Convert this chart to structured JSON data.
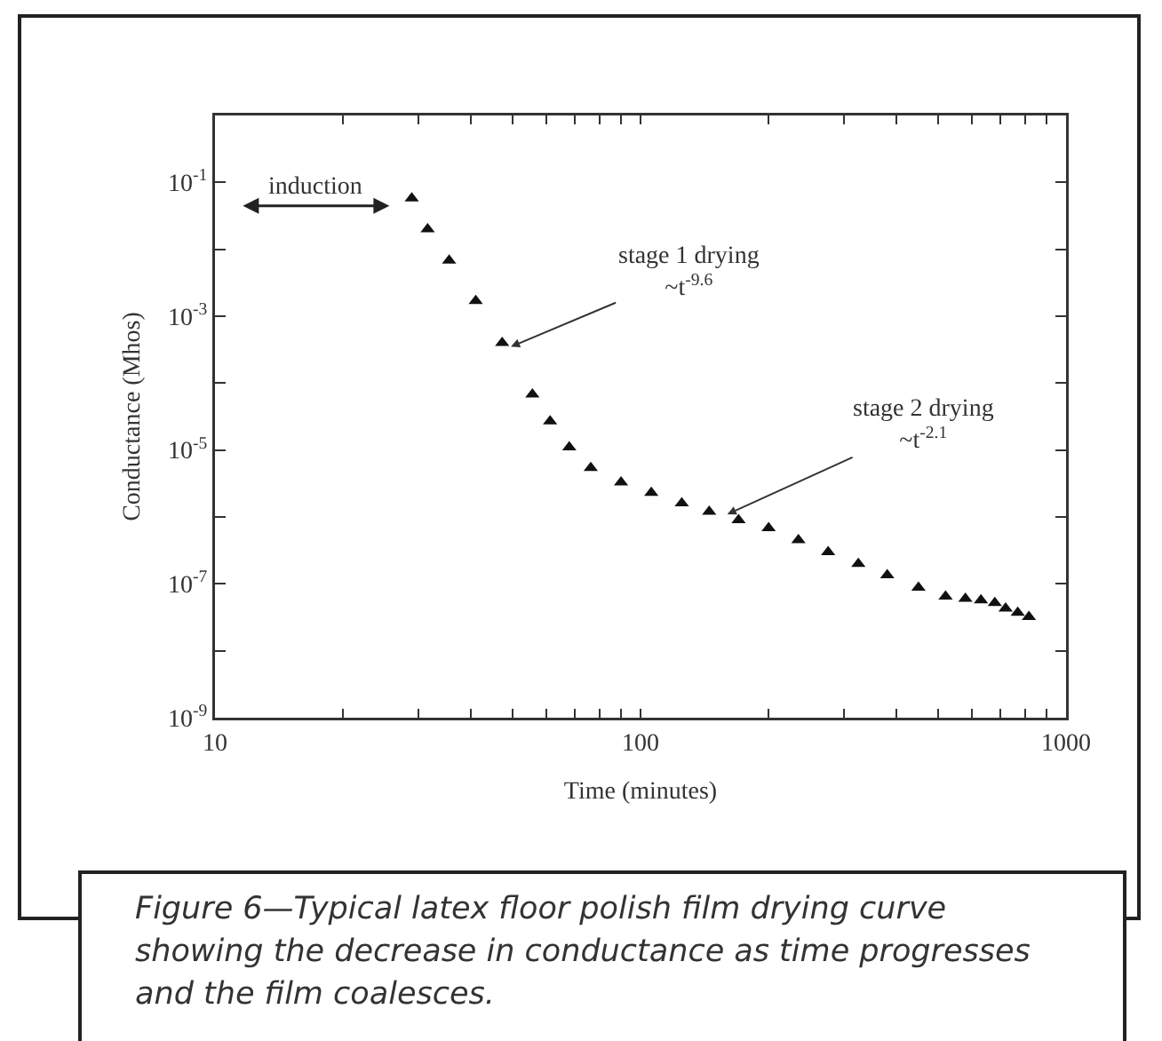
{
  "chart_data": {
    "type": "scatter",
    "xlabel": "Time (minutes)",
    "ylabel": "Conductance (Mhos)",
    "x": [
      29.0,
      31.6,
      35.5,
      41,
      47.3,
      55.7,
      61.3,
      68,
      76.4,
      90,
      106,
      125,
      145,
      170,
      200,
      235,
      276,
      325,
      380,
      450,
      521,
      580,
      631,
      680,
      721,
      770,
      818
    ],
    "series": [
      {
        "color": "#111111",
        "values": [
          0.058,
          0.02,
          0.0068,
          0.0017,
          0.0004,
          6.8e-05,
          2.7e-05,
          1.1e-05,
          5.4e-06,
          3.3e-06,
          2.3e-06,
          1.6e-06,
          1.2e-06,
          9e-07,
          6.8e-07,
          4.5e-07,
          3e-07,
          2e-07,
          1.35e-07,
          8.8e-08,
          6.5e-08,
          6e-08,
          5.7e-08,
          5.2e-08,
          4.3e-08,
          3.7e-08,
          3.2e-08
        ]
      }
    ],
    "log": "xy",
    "marker": "triangle",
    "xlim": [
      10,
      1000
    ],
    "xticks": [
      {
        "value": 10,
        "label": "10"
      },
      {
        "value": 20,
        "label": null
      },
      {
        "value": 30,
        "label": null
      },
      {
        "value": 40,
        "label": null
      },
      {
        "value": 50,
        "label": null
      },
      {
        "value": 60,
        "label": null
      },
      {
        "value": 70,
        "label": null
      },
      {
        "value": 80,
        "label": null
      },
      {
        "value": 90,
        "label": null
      },
      100,
      {
        "value": 200,
        "label": null
      },
      {
        "value": 300,
        "label": null
      },
      {
        "value": 400,
        "label": null
      },
      {
        "value": 500,
        "label": null
      },
      {
        "value": 600,
        "label": null
      },
      {
        "value": 700,
        "label": null
      },
      {
        "value": 800,
        "label": null
      },
      {
        "value": 900,
        "label": null
      },
      1000
    ],
    "ylim": [
      1e-09,
      1
    ],
    "yticks": [
      {
        "value": 1e-09,
        "label": "10$^{-9}$"
      },
      {
        "value": 1e-08,
        "label": null
      },
      {
        "value": 1e-07,
        "label": "10$^{-7}$"
      },
      {
        "value": 1e-06,
        "label": null
      },
      {
        "value": 1e-05,
        "label": "10$^{-5}$"
      },
      {
        "value": 0.0001,
        "label": null
      },
      {
        "value": 0.001,
        "label": "10$^{-3}$"
      },
      {
        "value": 0.01,
        "label": null
      },
      {
        "value": 0.1,
        "label": "10$^{-1}$"
      }
    ],
    "grid": false,
    "annotations": [
      "induction",
      {
        "text": "stage 1 drying\n~t$^{-9.6}$",
        "x": 49.6,
        "y": 0.00035
      },
      {
        "text": "stage 2 drying\n~t$^{-2.1}$",
        "x": 160,
        "y": 1.1e-06
      },
      "Figure 6—Typical latex floor polish film drying curve showing the decrease in conductance as time progresses and the film coalesces."
    ]
  }
}
